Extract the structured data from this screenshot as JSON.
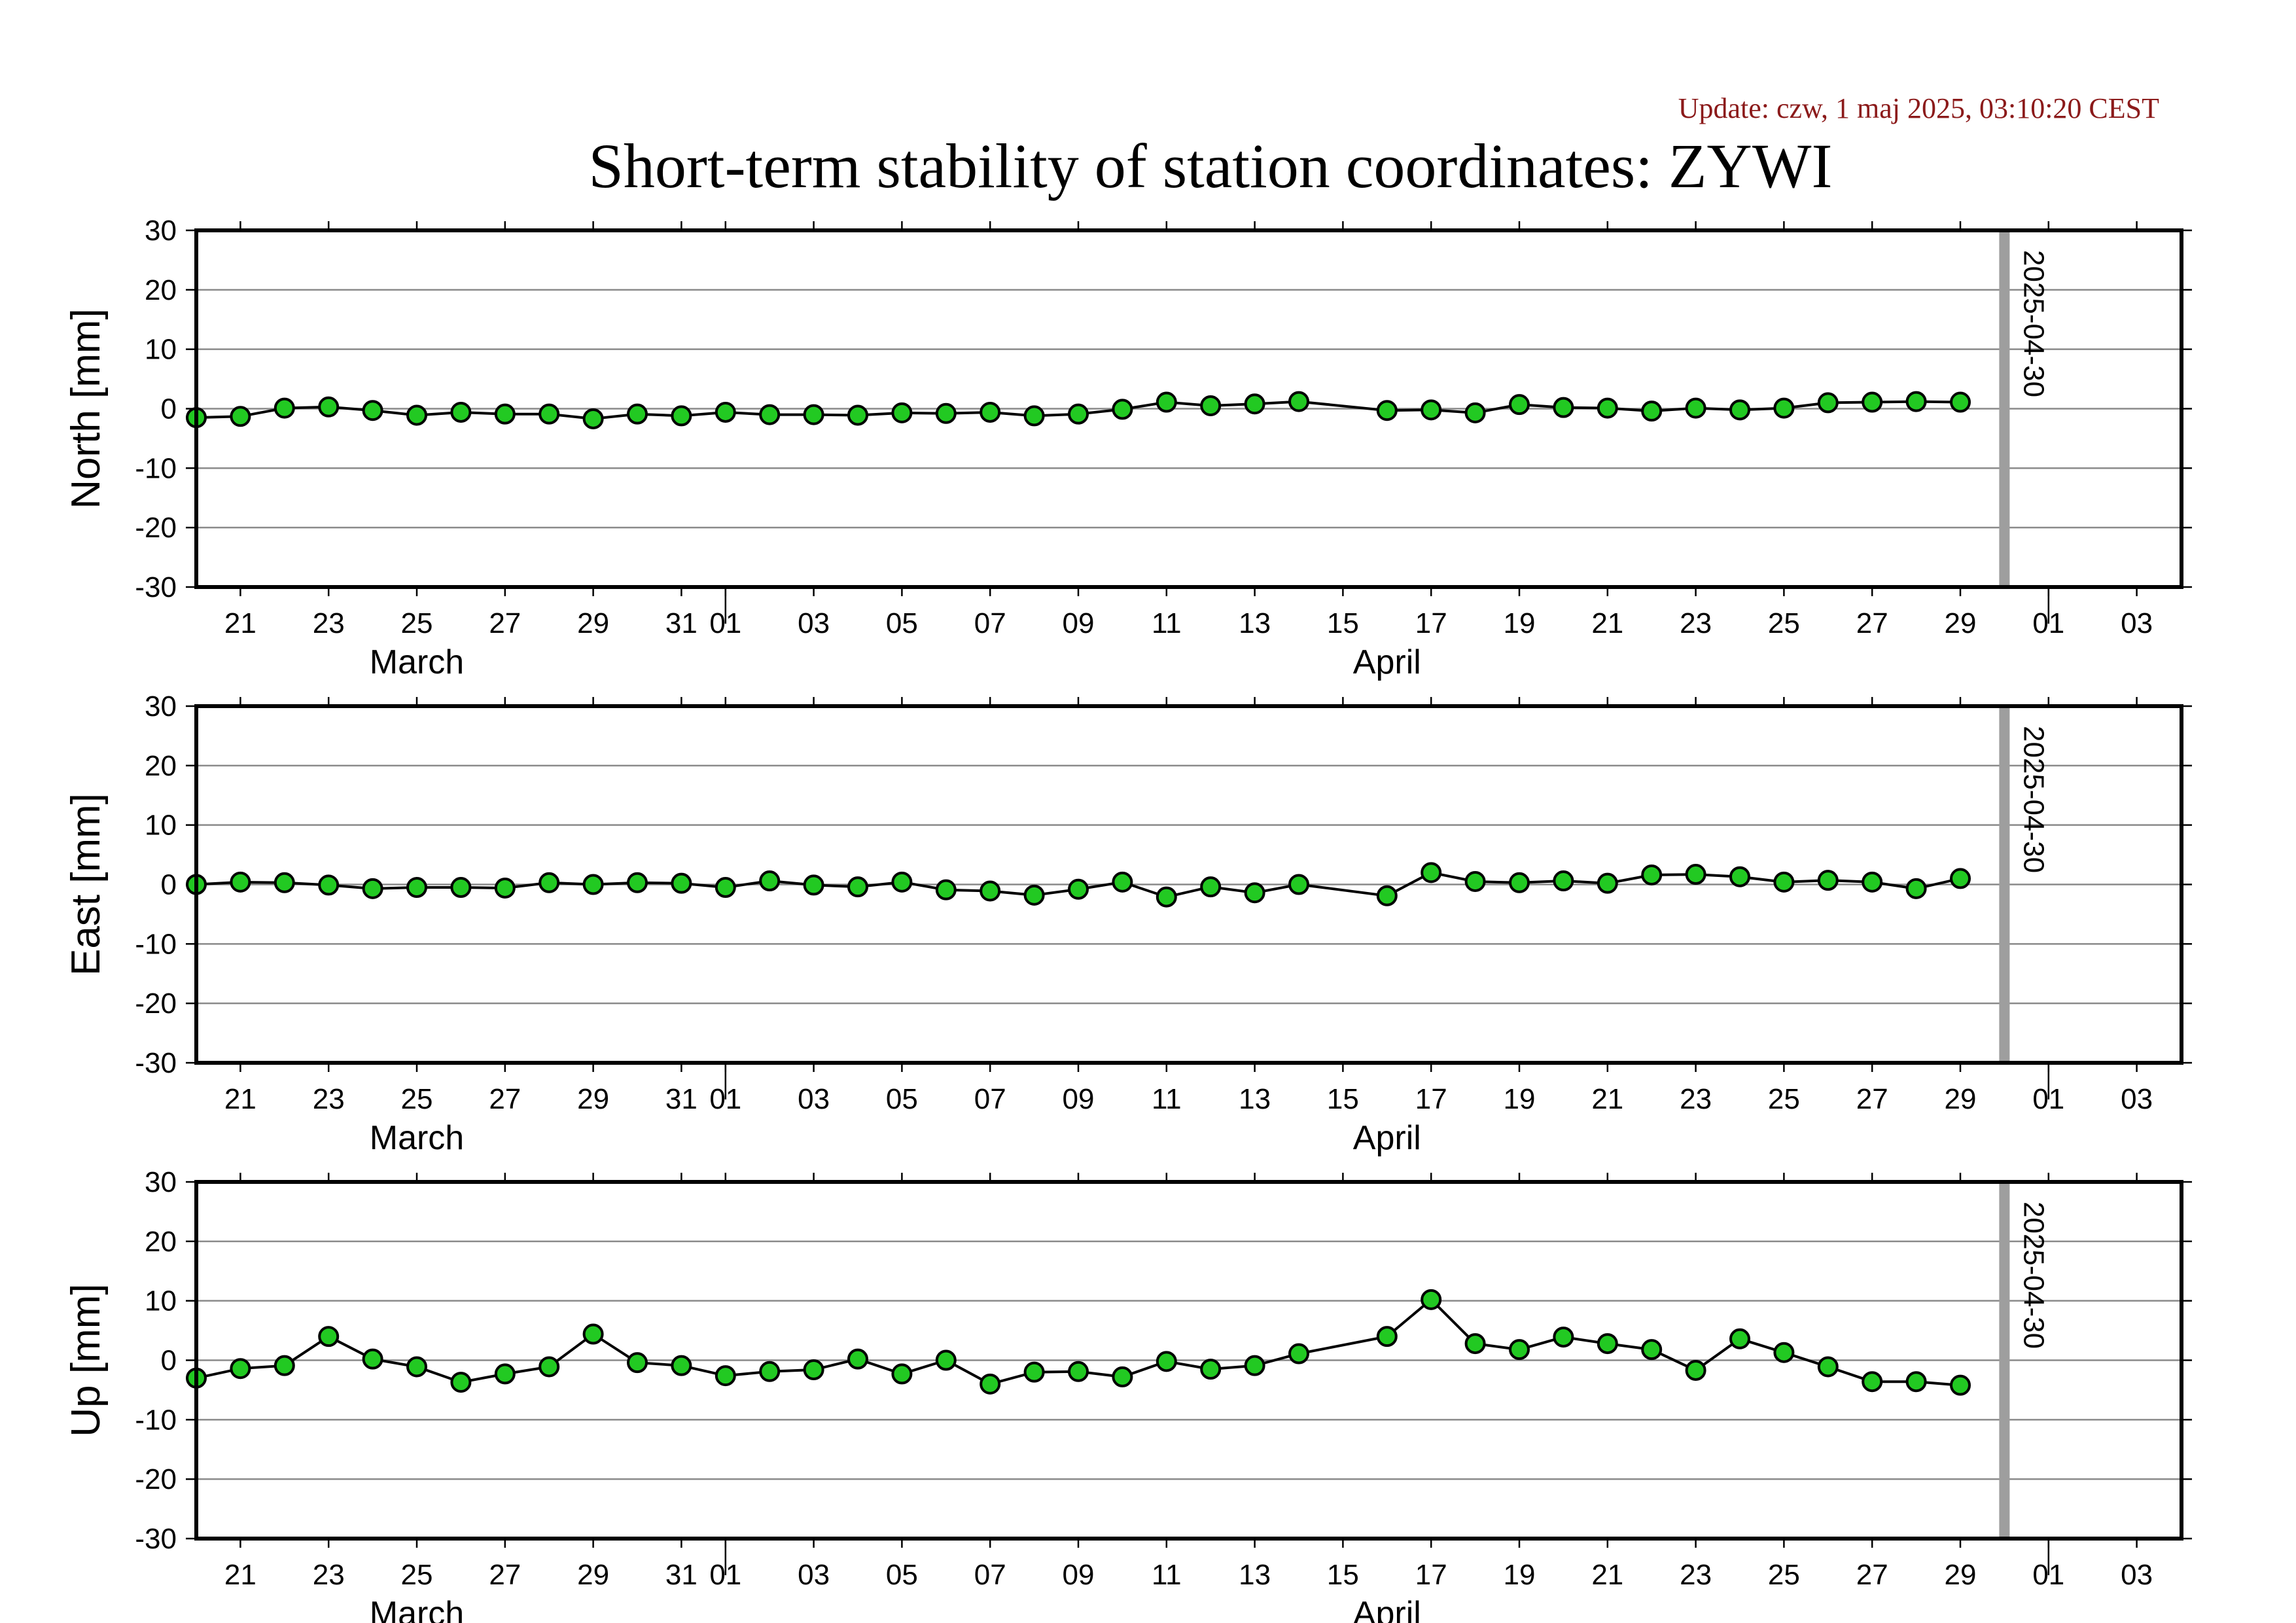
{
  "update": "Update: czw, 1 maj 2025, 03:10:20 CEST",
  "title": "Short-term stability of station coordinates: ZYWI",
  "colors": {
    "marker": "#22c922",
    "line": "#000000",
    "grid": "#8a8a8a",
    "marker_line": "#9e9e9e",
    "update": "#8b1a1a"
  },
  "chart_data": [
    {
      "type": "line",
      "ylabel": "North [mm]",
      "ylim": [
        -30,
        30
      ],
      "yticks": [
        -30,
        -20,
        -10,
        0,
        10,
        20,
        30
      ],
      "grid": true,
      "xlim": [
        "2025-03-20",
        "2025-05-03"
      ],
      "x_tick_labels": [
        {
          "date": "2025-03-21",
          "label": "21"
        },
        {
          "date": "2025-03-23",
          "label": "23"
        },
        {
          "date": "2025-03-25",
          "label": "25"
        },
        {
          "date": "2025-03-27",
          "label": "27"
        },
        {
          "date": "2025-03-29",
          "label": "29"
        },
        {
          "date": "2025-03-31",
          "label": "31"
        },
        {
          "date": "2025-04-01",
          "label": "01"
        },
        {
          "date": "2025-04-03",
          "label": "03"
        },
        {
          "date": "2025-04-05",
          "label": "05"
        },
        {
          "date": "2025-04-07",
          "label": "07"
        },
        {
          "date": "2025-04-09",
          "label": "09"
        },
        {
          "date": "2025-04-11",
          "label": "11"
        },
        {
          "date": "2025-04-13",
          "label": "13"
        },
        {
          "date": "2025-04-15",
          "label": "15"
        },
        {
          "date": "2025-04-17",
          "label": "17"
        },
        {
          "date": "2025-04-19",
          "label": "19"
        },
        {
          "date": "2025-04-21",
          "label": "21"
        },
        {
          "date": "2025-04-23",
          "label": "23"
        },
        {
          "date": "2025-04-25",
          "label": "25"
        },
        {
          "date": "2025-04-27",
          "label": "27"
        },
        {
          "date": "2025-04-29",
          "label": "29"
        },
        {
          "date": "2025-05-01",
          "label": "01"
        },
        {
          "date": "2025-05-03",
          "label": "03"
        }
      ],
      "month_labels": [
        {
          "date": "2025-03-25",
          "label": "March"
        },
        {
          "date": "2025-04-16",
          "label": "April"
        }
      ],
      "month_boundaries": [
        "2025-04-01",
        "2025-05-01"
      ],
      "marker_line": {
        "date": "2025-04-30",
        "label": "2025-04-30"
      },
      "x": [
        "2025-03-20",
        "2025-03-21",
        "2025-03-22",
        "2025-03-23",
        "2025-03-24",
        "2025-03-25",
        "2025-03-26",
        "2025-03-27",
        "2025-03-28",
        "2025-03-29",
        "2025-03-30",
        "2025-03-31",
        "2025-04-01",
        "2025-04-02",
        "2025-04-03",
        "2025-04-04",
        "2025-04-05",
        "2025-04-06",
        "2025-04-07",
        "2025-04-08",
        "2025-04-09",
        "2025-04-10",
        "2025-04-11",
        "2025-04-12",
        "2025-04-13",
        "2025-04-14",
        "2025-04-16",
        "2025-04-17",
        "2025-04-18",
        "2025-04-19",
        "2025-04-20",
        "2025-04-21",
        "2025-04-22",
        "2025-04-23",
        "2025-04-24",
        "2025-04-25",
        "2025-04-26",
        "2025-04-27",
        "2025-04-28",
        "2025-04-29"
      ],
      "values": [
        -1.5,
        -1.3,
        0.1,
        0.3,
        -0.3,
        -1.1,
        -0.6,
        -0.9,
        -0.9,
        -1.7,
        -0.9,
        -1.2,
        -0.6,
        -1.0,
        -1.0,
        -1.1,
        -0.7,
        -0.8,
        -0.6,
        -1.2,
        -0.9,
        -0.1,
        1.1,
        0.5,
        0.8,
        1.2,
        -0.3,
        -0.2,
        -0.7,
        0.7,
        0.2,
        0.1,
        -0.4,
        0.1,
        -0.2,
        0.1,
        1.0,
        1.1,
        1.2,
        1.1
      ]
    },
    {
      "type": "line",
      "ylabel": "East [mm]",
      "ylim": [
        -30,
        30
      ],
      "yticks": [
        -30,
        -20,
        -10,
        0,
        10,
        20,
        30
      ],
      "grid": true,
      "xlim": [
        "2025-03-20",
        "2025-05-03"
      ],
      "x_tick_labels": [
        {
          "date": "2025-03-21",
          "label": "21"
        },
        {
          "date": "2025-03-23",
          "label": "23"
        },
        {
          "date": "2025-03-25",
          "label": "25"
        },
        {
          "date": "2025-03-27",
          "label": "27"
        },
        {
          "date": "2025-03-29",
          "label": "29"
        },
        {
          "date": "2025-03-31",
          "label": "31"
        },
        {
          "date": "2025-04-01",
          "label": "01"
        },
        {
          "date": "2025-04-03",
          "label": "03"
        },
        {
          "date": "2025-04-05",
          "label": "05"
        },
        {
          "date": "2025-04-07",
          "label": "07"
        },
        {
          "date": "2025-04-09",
          "label": "09"
        },
        {
          "date": "2025-04-11",
          "label": "11"
        },
        {
          "date": "2025-04-13",
          "label": "13"
        },
        {
          "date": "2025-04-15",
          "label": "15"
        },
        {
          "date": "2025-04-17",
          "label": "17"
        },
        {
          "date": "2025-04-19",
          "label": "19"
        },
        {
          "date": "2025-04-21",
          "label": "21"
        },
        {
          "date": "2025-04-23",
          "label": "23"
        },
        {
          "date": "2025-04-25",
          "label": "25"
        },
        {
          "date": "2025-04-27",
          "label": "27"
        },
        {
          "date": "2025-04-29",
          "label": "29"
        },
        {
          "date": "2025-05-01",
          "label": "01"
        },
        {
          "date": "2025-05-03",
          "label": "03"
        }
      ],
      "month_labels": [
        {
          "date": "2025-03-25",
          "label": "March"
        },
        {
          "date": "2025-04-16",
          "label": "April"
        }
      ],
      "month_boundaries": [
        "2025-04-01",
        "2025-05-01"
      ],
      "marker_line": {
        "date": "2025-04-30",
        "label": "2025-04-30"
      },
      "x": [
        "2025-03-20",
        "2025-03-21",
        "2025-03-22",
        "2025-03-23",
        "2025-03-24",
        "2025-03-25",
        "2025-03-26",
        "2025-03-27",
        "2025-03-28",
        "2025-03-29",
        "2025-03-30",
        "2025-03-31",
        "2025-04-01",
        "2025-04-02",
        "2025-04-03",
        "2025-04-04",
        "2025-04-05",
        "2025-04-06",
        "2025-04-07",
        "2025-04-08",
        "2025-04-09",
        "2025-04-10",
        "2025-04-11",
        "2025-04-12",
        "2025-04-13",
        "2025-04-14",
        "2025-04-16",
        "2025-04-17",
        "2025-04-18",
        "2025-04-19",
        "2025-04-20",
        "2025-04-21",
        "2025-04-22",
        "2025-04-23",
        "2025-04-24",
        "2025-04-25",
        "2025-04-26",
        "2025-04-27",
        "2025-04-28",
        "2025-04-29"
      ],
      "values": [
        0.0,
        0.4,
        0.3,
        -0.1,
        -0.7,
        -0.5,
        -0.5,
        -0.6,
        0.3,
        0.0,
        0.3,
        0.2,
        -0.5,
        0.6,
        -0.1,
        -0.4,
        0.4,
        -0.9,
        -1.1,
        -1.8,
        -0.8,
        0.4,
        -2.1,
        -0.4,
        -1.4,
        0.0,
        -1.9,
        2.0,
        0.5,
        0.3,
        0.6,
        0.2,
        1.6,
        1.7,
        1.3,
        0.4,
        0.7,
        0.4,
        -0.7,
        1.0
      ]
    },
    {
      "type": "line",
      "ylabel": "Up [mm]",
      "ylim": [
        -30,
        30
      ],
      "yticks": [
        -30,
        -20,
        -10,
        0,
        10,
        20,
        30
      ],
      "grid": true,
      "xlim": [
        "2025-03-20",
        "2025-05-03"
      ],
      "x_tick_labels": [
        {
          "date": "2025-03-21",
          "label": "21"
        },
        {
          "date": "2025-03-23",
          "label": "23"
        },
        {
          "date": "2025-03-25",
          "label": "25"
        },
        {
          "date": "2025-03-27",
          "label": "27"
        },
        {
          "date": "2025-03-29",
          "label": "29"
        },
        {
          "date": "2025-03-31",
          "label": "31"
        },
        {
          "date": "2025-04-01",
          "label": "01"
        },
        {
          "date": "2025-04-03",
          "label": "03"
        },
        {
          "date": "2025-04-05",
          "label": "05"
        },
        {
          "date": "2025-04-07",
          "label": "07"
        },
        {
          "date": "2025-04-09",
          "label": "09"
        },
        {
          "date": "2025-04-11",
          "label": "11"
        },
        {
          "date": "2025-04-13",
          "label": "13"
        },
        {
          "date": "2025-04-15",
          "label": "15"
        },
        {
          "date": "2025-04-17",
          "label": "17"
        },
        {
          "date": "2025-04-19",
          "label": "19"
        },
        {
          "date": "2025-04-21",
          "label": "21"
        },
        {
          "date": "2025-04-23",
          "label": "23"
        },
        {
          "date": "2025-04-25",
          "label": "25"
        },
        {
          "date": "2025-04-27",
          "label": "27"
        },
        {
          "date": "2025-04-29",
          "label": "29"
        },
        {
          "date": "2025-05-01",
          "label": "01"
        },
        {
          "date": "2025-05-03",
          "label": "03"
        }
      ],
      "month_labels": [
        {
          "date": "2025-03-25",
          "label": "March"
        },
        {
          "date": "2025-04-16",
          "label": "April"
        }
      ],
      "month_boundaries": [
        "2025-04-01",
        "2025-05-01"
      ],
      "marker_line": {
        "date": "2025-04-30",
        "label": "2025-04-30"
      },
      "x": [
        "2025-03-20",
        "2025-03-21",
        "2025-03-22",
        "2025-03-23",
        "2025-03-24",
        "2025-03-25",
        "2025-03-26",
        "2025-03-27",
        "2025-03-28",
        "2025-03-29",
        "2025-03-30",
        "2025-03-31",
        "2025-04-01",
        "2025-04-02",
        "2025-04-03",
        "2025-04-04",
        "2025-04-05",
        "2025-04-06",
        "2025-04-07",
        "2025-04-08",
        "2025-04-09",
        "2025-04-10",
        "2025-04-11",
        "2025-04-12",
        "2025-04-13",
        "2025-04-14",
        "2025-04-16",
        "2025-04-17",
        "2025-04-18",
        "2025-04-19",
        "2025-04-20",
        "2025-04-21",
        "2025-04-22",
        "2025-04-23",
        "2025-04-24",
        "2025-04-25",
        "2025-04-26",
        "2025-04-27",
        "2025-04-28",
        "2025-04-29"
      ],
      "values": [
        -3.0,
        -1.4,
        -0.9,
        4.0,
        0.2,
        -1.1,
        -3.7,
        -2.3,
        -1.1,
        4.4,
        -0.4,
        -0.9,
        -2.6,
        -1.9,
        -1.6,
        0.2,
        -2.3,
        0.0,
        -4.0,
        -2.0,
        -1.9,
        -2.8,
        -0.2,
        -1.5,
        -0.9,
        1.1,
        4.0,
        10.2,
        2.8,
        1.8,
        3.9,
        2.8,
        1.8,
        -1.7,
        3.6,
        1.3,
        -1.1,
        -3.6,
        -3.6,
        -4.2
      ]
    }
  ]
}
